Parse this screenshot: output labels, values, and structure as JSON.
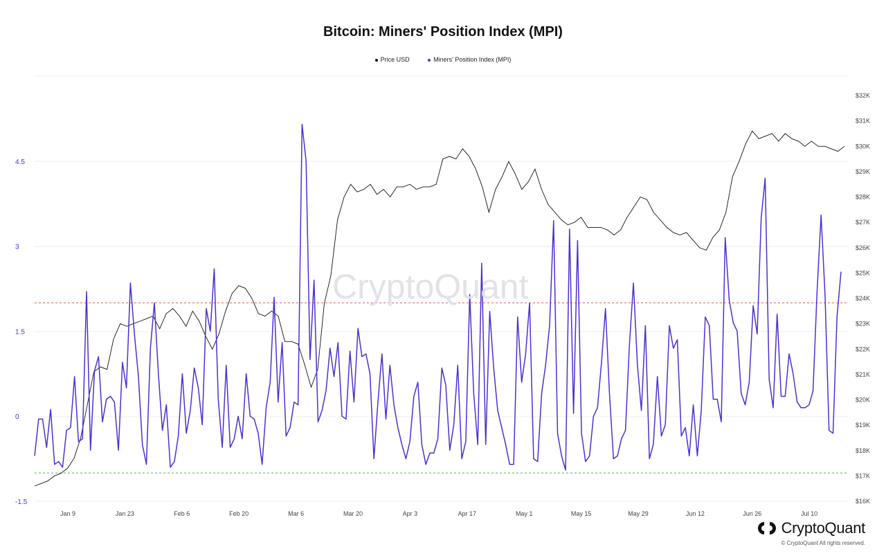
{
  "chart_data": {
    "type": "line",
    "title": "Bitcoin: Miners' Position Index (MPI)",
    "watermark": "CryptoQuant",
    "x_ticks": [
      "Jan 9",
      "Jan 23",
      "Feb 6",
      "Feb 20",
      "Mar 6",
      "Mar 20",
      "Apr 3",
      "Apr 17",
      "May 1",
      "May 15",
      "May 29",
      "Jun 12",
      "Jun 26",
      "Jul 10"
    ],
    "y_left": {
      "ticks": [
        "4.5",
        "3",
        "1.5",
        "0",
        "-1.5"
      ],
      "range": [
        -1.5,
        6.0
      ],
      "color": "#4b2fd1"
    },
    "y_right": {
      "ticks": [
        "$32K",
        "$31K",
        "$30K",
        "$29K",
        "$28K",
        "$27K",
        "$26K",
        "$25K",
        "$24K",
        "$23K",
        "$22K",
        "$21K",
        "$20K",
        "$19K",
        "$18K",
        "$17K",
        "$16K"
      ]
    },
    "reference_lines": [
      {
        "value": 2.0,
        "color": "#e85a5a",
        "style": "dashed"
      },
      {
        "value": -1.0,
        "color": "#56b85a",
        "style": "dashed"
      }
    ],
    "series": [
      {
        "name": "Price USD",
        "color": "#111111",
        "axis": "right",
        "points": [
          [
            0,
            16.6
          ],
          [
            5,
            16.7
          ],
          [
            10,
            16.8
          ],
          [
            15,
            17.0
          ],
          [
            20,
            17.1
          ],
          [
            25,
            17.3
          ],
          [
            30,
            17.7
          ],
          [
            35,
            18.5
          ],
          [
            40,
            19.8
          ],
          [
            45,
            21.1
          ],
          [
            50,
            21.3
          ],
          [
            55,
            21.2
          ],
          [
            60,
            22.4
          ],
          [
            65,
            23.0
          ],
          [
            70,
            22.9
          ],
          [
            75,
            23.0
          ],
          [
            80,
            23.1
          ],
          [
            85,
            23.2
          ],
          [
            90,
            23.3
          ],
          [
            95,
            22.8
          ],
          [
            100,
            23.4
          ],
          [
            105,
            23.6
          ],
          [
            110,
            23.3
          ],
          [
            115,
            22.9
          ],
          [
            120,
            23.5
          ],
          [
            125,
            23.1
          ],
          [
            130,
            22.5
          ],
          [
            135,
            22.0
          ],
          [
            140,
            22.6
          ],
          [
            145,
            23.5
          ],
          [
            150,
            24.2
          ],
          [
            155,
            24.5
          ],
          [
            160,
            24.4
          ],
          [
            165,
            24.0
          ],
          [
            170,
            23.4
          ],
          [
            175,
            23.3
          ],
          [
            180,
            23.5
          ],
          [
            185,
            23.3
          ],
          [
            190,
            22.3
          ],
          [
            195,
            22.3
          ],
          [
            200,
            22.2
          ],
          [
            205,
            21.4
          ],
          [
            210,
            20.5
          ],
          [
            215,
            21.2
          ],
          [
            220,
            23.8
          ],
          [
            225,
            24.9
          ],
          [
            230,
            27.1
          ],
          [
            235,
            28.0
          ],
          [
            240,
            28.5
          ],
          [
            245,
            28.2
          ],
          [
            250,
            28.3
          ],
          [
            255,
            28.5
          ],
          [
            260,
            28.1
          ],
          [
            265,
            28.3
          ],
          [
            270,
            28.0
          ],
          [
            275,
            28.4
          ],
          [
            280,
            28.4
          ],
          [
            285,
            28.5
          ],
          [
            290,
            28.3
          ],
          [
            295,
            28.4
          ],
          [
            300,
            28.4
          ],
          [
            305,
            28.5
          ],
          [
            310,
            29.5
          ],
          [
            315,
            29.6
          ],
          [
            320,
            29.5
          ],
          [
            325,
            29.9
          ],
          [
            330,
            29.6
          ],
          [
            335,
            29.1
          ],
          [
            340,
            28.4
          ],
          [
            345,
            27.4
          ],
          [
            350,
            28.3
          ],
          [
            355,
            28.8
          ],
          [
            360,
            29.4
          ],
          [
            365,
            28.9
          ],
          [
            370,
            28.3
          ],
          [
            375,
            28.6
          ],
          [
            380,
            29.1
          ],
          [
            385,
            28.3
          ],
          [
            390,
            27.7
          ],
          [
            395,
            27.4
          ],
          [
            400,
            27.1
          ],
          [
            405,
            26.9
          ],
          [
            410,
            27.0
          ],
          [
            415,
            27.2
          ],
          [
            420,
            26.8
          ],
          [
            425,
            26.8
          ],
          [
            430,
            26.8
          ],
          [
            435,
            26.7
          ],
          [
            440,
            26.5
          ],
          [
            445,
            26.7
          ],
          [
            450,
            27.2
          ],
          [
            455,
            27.6
          ],
          [
            460,
            28.0
          ],
          [
            465,
            27.9
          ],
          [
            470,
            27.4
          ],
          [
            475,
            27.1
          ],
          [
            480,
            26.8
          ],
          [
            485,
            26.6
          ],
          [
            490,
            26.5
          ],
          [
            495,
            26.6
          ],
          [
            500,
            26.3
          ],
          [
            505,
            26.0
          ],
          [
            510,
            25.9
          ],
          [
            515,
            26.4
          ],
          [
            520,
            26.7
          ],
          [
            525,
            27.4
          ],
          [
            530,
            28.8
          ],
          [
            535,
            29.4
          ],
          [
            540,
            30.1
          ],
          [
            545,
            30.6
          ],
          [
            550,
            30.3
          ],
          [
            555,
            30.4
          ],
          [
            560,
            30.5
          ],
          [
            565,
            30.2
          ],
          [
            570,
            30.5
          ],
          [
            575,
            30.3
          ],
          [
            580,
            30.2
          ],
          [
            585,
            30.0
          ],
          [
            590,
            30.2
          ],
          [
            595,
            30.0
          ],
          [
            600,
            30.0
          ],
          [
            605,
            29.9
          ],
          [
            610,
            29.8
          ],
          [
            615,
            30.0
          ]
        ]
      },
      {
        "name": "Miners' Position Index (MPI)",
        "color": "#4b2fd1",
        "axis": "left",
        "values": [
          -0.7,
          -0.05,
          -0.05,
          -0.55,
          0.12,
          -0.85,
          -0.8,
          -0.9,
          -0.25,
          -0.2,
          0.7,
          -0.45,
          -0.4,
          2.2,
          -0.6,
          0.8,
          1.05,
          -0.1,
          0.3,
          0.35,
          0.25,
          -0.6,
          0.95,
          0.5,
          2.35,
          1.45,
          0.7,
          -0.5,
          -0.85,
          1.2,
          2.0,
          0.75,
          -0.25,
          0.2,
          -0.9,
          -0.8,
          -0.35,
          0.75,
          -0.3,
          0.1,
          0.85,
          0.5,
          -0.15,
          1.9,
          1.5,
          2.6,
          0.3,
          -0.55,
          0.9,
          -0.55,
          -0.4,
          0.0,
          -0.4,
          0.75,
          0.0,
          -0.05,
          -0.3,
          -0.85,
          0.15,
          0.6,
          2.1,
          0.25,
          1.3,
          -0.35,
          -0.2,
          0.25,
          0.2,
          5.15,
          4.5,
          1.0,
          2.4,
          -0.1,
          0.1,
          0.45,
          1.2,
          0.7,
          1.3,
          0.0,
          -0.05,
          1.15,
          0.25,
          1.55,
          1.05,
          1.1,
          0.75,
          -0.75,
          0.25,
          1.1,
          -0.05,
          0.9,
          0.2,
          -0.2,
          -0.5,
          -0.75,
          -0.45,
          0.35,
          0.6,
          -0.5,
          -0.85,
          -0.65,
          -0.65,
          -0.4,
          0.85,
          0.55,
          -0.6,
          -0.15,
          0.9,
          -0.75,
          -0.45,
          2.15,
          0.4,
          -0.5,
          2.7,
          -0.5,
          1.85,
          0.85,
          0.1,
          -0.2,
          -0.5,
          -0.85,
          -0.85,
          1.75,
          0.6,
          1.1,
          2.0,
          -0.75,
          -0.8,
          0.4,
          0.9,
          1.6,
          3.45,
          -0.3,
          -0.7,
          -0.95,
          3.3,
          0.05,
          3.1,
          -0.3,
          -0.8,
          -0.7,
          0.0,
          0.15,
          0.95,
          1.9,
          0.4,
          -0.75,
          -0.7,
          -0.4,
          -0.25,
          1.25,
          2.35,
          0.9,
          0.1,
          1.6,
          -0.75,
          -0.5,
          0.7,
          -0.35,
          -0.15,
          1.6,
          1.2,
          1.35,
          -0.35,
          -0.2,
          -0.7,
          0.2,
          -0.7,
          0.1,
          1.75,
          1.6,
          0.3,
          0.3,
          -0.1,
          3.15,
          2.05,
          1.65,
          1.5,
          0.4,
          0.2,
          0.6,
          1.95,
          1.45,
          3.5,
          4.2,
          0.65,
          0.15,
          1.8,
          0.35,
          0.35,
          1.1,
          0.75,
          0.25,
          0.15,
          0.15,
          0.2,
          0.45,
          2.2,
          3.55,
          2.15,
          -0.25,
          -0.3,
          1.75,
          2.55
        ]
      }
    ]
  },
  "footer": {
    "brand": "CryptoQuant",
    "copyright": "© CryptoQuant All rights reserved."
  }
}
